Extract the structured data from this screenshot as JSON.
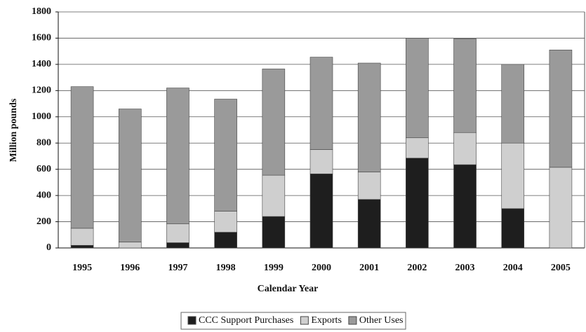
{
  "chart_data": {
    "type": "stacked_bar",
    "xlabel": "Calendar Year",
    "ylabel": "Million pounds",
    "categories": [
      "1995",
      "1996",
      "1997",
      "1998",
      "1999",
      "2000",
      "2001",
      "2002",
      "2003",
      "2004",
      "2005"
    ],
    "series": [
      {
        "name": "CCC Support Purchases",
        "color": "#1e1e1e",
        "values": [
          20,
          0,
          40,
          120,
          240,
          565,
          370,
          685,
          635,
          300,
          0
        ]
      },
      {
        "name": "Exports",
        "color": "#cfcfcf",
        "values": [
          130,
          45,
          145,
          160,
          315,
          185,
          210,
          155,
          245,
          500,
          615
        ]
      },
      {
        "name": "Other Uses",
        "color": "#9a9a9a",
        "values": [
          1080,
          1015,
          1035,
          855,
          810,
          705,
          830,
          760,
          715,
          600,
          895
        ]
      }
    ],
    "ylim": [
      0,
      1800
    ],
    "yticks": [
      0,
      200,
      400,
      600,
      800,
      1000,
      1200,
      1400,
      1600,
      1800
    ],
    "grid": true,
    "legend": "bottom"
  }
}
